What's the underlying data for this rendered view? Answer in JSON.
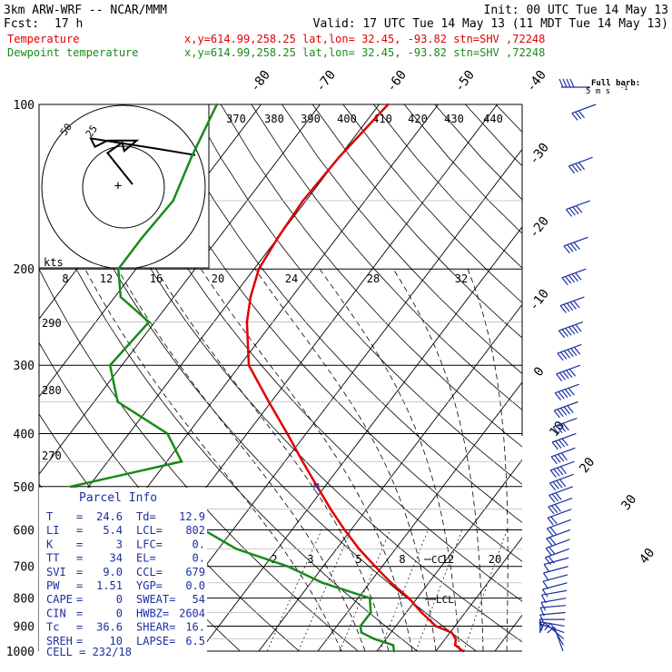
{
  "header": {
    "model": "3km ARW-WRF -- NCAR/MMM",
    "init": "Init: 00 UTC Tue 14 May 13",
    "fcst_label": "Fcst:",
    "fcst_value": "17 h",
    "valid": "Valid: 17 UTC Tue 14 May 13 (11 MDT Tue 14 May 13)"
  },
  "colors": {
    "temperature": "#e00000",
    "dewpoint": "#1a8a1a",
    "parcel": "#1c2fa0",
    "axis": "#000000"
  },
  "series_lines": [
    {
      "label": "Temperature",
      "meta": "x,y=614.99,258.25   lat,lon= 32.45, -93.82   stn=SHV ,72248"
    },
    {
      "label": "Dewpoint temperature",
      "meta": "x,y=614.99,258.25   lat,lon= 32.45, -93.82   stn=SHV ,72248"
    }
  ],
  "wind_barb_key": {
    "title": "Full barb:",
    "units": "5 m s",
    "exp": "-1"
  },
  "pressure_labels": [
    "100",
    "200",
    "300",
    "400",
    "500",
    "600",
    "700",
    "800",
    "900",
    "1000"
  ],
  "isotherm_labels": [
    "-80",
    "-70",
    "-60",
    "-50",
    "-40",
    "-30",
    "-20",
    "-10",
    "0",
    "10",
    "20",
    "30",
    "40"
  ],
  "theta_labels": [
    "370",
    "380",
    "390",
    "400",
    "410",
    "420",
    "430",
    "440"
  ],
  "hodograph": {
    "unit": "kts",
    "rings": [
      "25",
      "50"
    ]
  },
  "mixing_ratio_labels": [
    "8",
    "12",
    "16",
    "20",
    "24",
    "28",
    "32"
  ],
  "low_mixing_labels": [
    "2",
    "3",
    "5",
    "8",
    "12",
    "20"
  ],
  "dry_adiabat_labels": [
    "290",
    "280",
    "270"
  ],
  "level_marks": {
    "m": "M",
    "ccl": "CCL",
    "lcl": "LCL"
  },
  "parcel_info": {
    "title": "Parcel Info",
    "rows": [
      {
        "k1": "T",
        "v1": "24.6",
        "k2": "Td",
        "v2": "12.9"
      },
      {
        "k1": "LI",
        "v1": "5.4",
        "k2": "LCL",
        "v2": "802"
      },
      {
        "k1": "K",
        "v1": "3",
        "k2": "LFC",
        "v2": "0."
      },
      {
        "k1": "TT",
        "v1": "34",
        "k2": "EL",
        "v2": "0."
      },
      {
        "k1": "SVI",
        "v1": "9.0",
        "k2": "CCL",
        "v2": "679"
      },
      {
        "k1": "PW",
        "v1": "1.51",
        "k2": "YGP",
        "v2": "0.0"
      },
      {
        "k1": "CAPE",
        "v1": "0",
        "k2": "SWEAT",
        "v2": "54"
      },
      {
        "k1": "CIN",
        "v1": "0",
        "k2": "HWBZ",
        "v2": "2604"
      },
      {
        "k1": "Tc",
        "v1": "36.6",
        "k2": "SHEAR",
        "v2": "16."
      },
      {
        "k1": "SREH",
        "v1": "10",
        "k2": "LAPSE",
        "v2": "6.5"
      }
    ],
    "cell": "CELL = 232/18"
  },
  "chart_data": {
    "type": "line",
    "title": "",
    "xlabel": "",
    "ylabel": "",
    "y_scale": "log-pressure",
    "ylim": [
      1000,
      100
    ],
    "xlim": [
      -40,
      40
    ],
    "x_units": "deg C",
    "y_units": "hPa",
    "series": [
      {
        "name": "Temperature",
        "x": [
          24.6,
          22.5,
          21.8,
          20.3,
          16.8,
          12.6,
          8.6,
          3.6,
          -1.2,
          -6.2,
          -11.1,
          -16.1,
          -21.3,
          -27.0,
          -33.2,
          -40.4,
          -48.5,
          -54.4,
          -57.0,
          -59.2,
          -60.0,
          -60.5,
          -60.0,
          -58.5
        ],
        "y": [
          1000,
          975,
          950,
          925,
          900,
          850,
          800,
          750,
          700,
          650,
          600,
          550,
          500,
          450,
          400,
          350,
          300,
          250,
          225,
          200,
          175,
          150,
          125,
          100
        ]
      },
      {
        "name": "Dewpoint temperature",
        "x": [
          12.9,
          12.0,
          8.0,
          5.0,
          4.0,
          4.0,
          2.0,
          -8.0,
          -16.0,
          -27.0,
          -35.0,
          -49.0,
          -63.0,
          -47.5,
          -53.5,
          -66.0,
          -72.0,
          -71.0,
          -79.0,
          -83.0,
          -83.0,
          -82.5,
          -85.0,
          -87.5
        ],
        "y": [
          1000,
          975,
          950,
          925,
          900,
          850,
          800,
          750,
          700,
          650,
          600,
          550,
          500,
          450,
          400,
          350,
          300,
          250,
          225,
          200,
          175,
          150,
          125,
          100
        ]
      }
    ],
    "hodograph": {
      "u": [
        0,
        -12,
        -5,
        -4,
        2,
        -12,
        -18,
        -20,
        12,
        30
      ],
      "v": [
        0,
        15,
        20,
        16,
        21,
        21,
        18,
        22,
        17,
        14
      ]
    },
    "wind_barbs": {
      "pressure": [
        1000,
        975,
        950,
        925,
        900,
        875,
        850,
        825,
        800,
        775,
        750,
        725,
        700,
        675,
        650,
        625,
        600,
        575,
        550,
        525,
        500,
        475,
        450,
        425,
        400,
        375,
        350,
        325,
        300,
        275,
        250,
        225,
        200,
        175,
        150,
        125,
        100
      ],
      "speed_kt": [
        6,
        9,
        9,
        7,
        6,
        5,
        5,
        5,
        6,
        6,
        7,
        7,
        8,
        9,
        10,
        11,
        12,
        14,
        14,
        16,
        18,
        20,
        22,
        22,
        24,
        24,
        26,
        28,
        28,
        30,
        30,
        28,
        26,
        24,
        22,
        20,
        18
      ],
      "dir_deg": [
        200,
        210,
        230,
        250,
        260,
        270,
        275,
        275,
        280,
        280,
        285,
        285,
        285,
        285,
        290,
        290,
        290,
        290,
        290,
        290,
        290,
        290,
        290,
        290,
        290,
        290,
        290,
        290,
        290,
        290,
        290,
        290,
        290,
        290,
        290,
        290,
        290
      ]
    }
  }
}
